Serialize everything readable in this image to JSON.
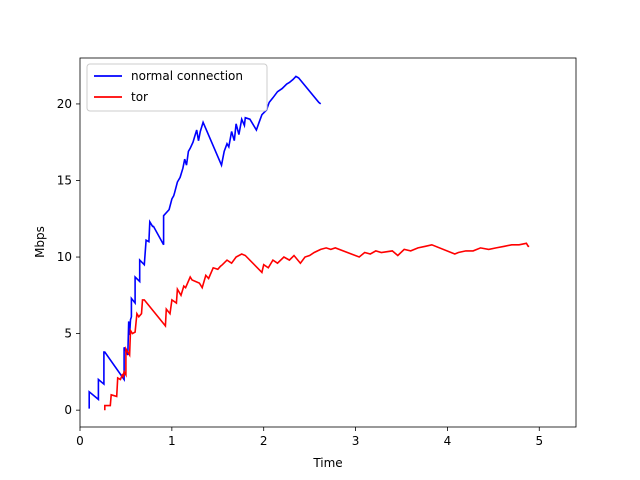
{
  "chart_data": {
    "type": "line",
    "title": "",
    "xlabel": "Time",
    "ylabel": "Mbps",
    "xlim": [
      0,
      5.4
    ],
    "ylim": [
      -1.1,
      23.0
    ],
    "xticks": [
      0,
      1,
      2,
      3,
      4,
      5
    ],
    "yticks": [
      0,
      5,
      10,
      15,
      20
    ],
    "grid": false,
    "legend_position": "top-left",
    "series": [
      {
        "name": "normal connection",
        "color": "#0000ff",
        "x": [
          0.1,
          0.1,
          0.2,
          0.2,
          0.26,
          0.26,
          0.27,
          0.48,
          0.48,
          0.52,
          0.53,
          0.54,
          0.55,
          0.56,
          0.56,
          0.6,
          0.6,
          0.65,
          0.65,
          0.7,
          0.72,
          0.75,
          0.76,
          0.79,
          0.8,
          0.91,
          0.91,
          0.97,
          1.0,
          1.02,
          1.03,
          1.06,
          1.09,
          1.12,
          1.14,
          1.16,
          1.18,
          1.2,
          1.23,
          1.25,
          1.27,
          1.29,
          1.31,
          1.34,
          1.54,
          1.57,
          1.6,
          1.62,
          1.65,
          1.68,
          1.7,
          1.73,
          1.76,
          1.79,
          1.8,
          1.85,
          1.92,
          1.95,
          1.98,
          2.03,
          2.06,
          2.1,
          2.15,
          2.2,
          2.25,
          2.28,
          2.32,
          2.35,
          2.38,
          2.6,
          2.62
        ],
        "y": [
          0.1,
          1.2,
          0.7,
          2.0,
          1.7,
          3.8,
          3.8,
          2.0,
          4.1,
          3.6,
          5.8,
          4.9,
          5.9,
          6.1,
          7.3,
          7.0,
          8.7,
          8.4,
          9.8,
          9.5,
          11.1,
          11.0,
          12.3,
          12.0,
          12.0,
          10.8,
          12.7,
          13.1,
          13.8,
          14.0,
          14.2,
          14.9,
          15.2,
          15.8,
          16.4,
          16.0,
          16.9,
          17.1,
          17.5,
          17.9,
          18.3,
          17.6,
          18.2,
          18.8,
          16.0,
          16.9,
          17.4,
          17.2,
          18.2,
          17.6,
          18.7,
          18.0,
          19.0,
          18.6,
          19.1,
          19.0,
          18.3,
          18.8,
          19.3,
          19.6,
          20.1,
          20.4,
          20.8,
          21.0,
          21.3,
          21.4,
          21.6,
          21.8,
          21.7,
          20.1,
          20.0
        ]
      },
      {
        "name": "tor",
        "color": "#ff0000",
        "x": [
          0.27,
          0.27,
          0.32,
          0.33,
          0.34,
          0.4,
          0.41,
          0.44,
          0.46,
          0.47,
          0.48,
          0.5,
          0.5,
          0.54,
          0.55,
          0.57,
          0.6,
          0.62,
          0.64,
          0.67,
          0.68,
          0.7,
          0.93,
          0.94,
          0.98,
          1.0,
          1.05,
          1.06,
          1.1,
          1.13,
          1.15,
          1.2,
          1.22,
          1.3,
          1.33,
          1.37,
          1.4,
          1.45,
          1.5,
          1.53,
          1.55,
          1.6,
          1.65,
          1.7,
          1.76,
          1.8,
          1.98,
          2.0,
          2.05,
          2.1,
          2.15,
          2.22,
          2.28,
          2.33,
          2.4,
          2.45,
          2.5,
          2.55,
          2.62,
          2.68,
          2.73,
          2.78,
          3.04,
          3.1,
          3.16,
          3.22,
          3.28,
          3.4,
          3.46,
          3.53,
          3.6,
          3.68,
          3.76,
          3.83,
          4.08,
          4.12,
          4.2,
          4.28,
          4.36,
          4.45,
          4.53,
          4.62,
          4.7,
          4.78,
          4.86,
          4.88,
          4.89
        ],
        "y": [
          0.0,
          0.3,
          0.3,
          0.3,
          1.0,
          0.9,
          2.1,
          2.0,
          2.3,
          2.2,
          2.5,
          2.3,
          4.0,
          3.6,
          5.2,
          5.0,
          5.1,
          6.3,
          6.1,
          6.3,
          7.2,
          7.2,
          5.5,
          6.6,
          6.3,
          7.2,
          7.0,
          7.9,
          7.5,
          8.1,
          8.0,
          8.7,
          8.5,
          8.3,
          8.0,
          8.8,
          8.6,
          9.3,
          9.2,
          9.4,
          9.5,
          9.8,
          9.6,
          10.0,
          10.2,
          10.1,
          9.0,
          9.5,
          9.3,
          9.8,
          9.6,
          10.0,
          9.8,
          10.1,
          9.6,
          10.0,
          10.1,
          10.3,
          10.5,
          10.6,
          10.5,
          10.6,
          10.0,
          10.3,
          10.2,
          10.4,
          10.3,
          10.4,
          10.1,
          10.5,
          10.4,
          10.6,
          10.7,
          10.8,
          10.2,
          10.3,
          10.4,
          10.4,
          10.6,
          10.5,
          10.6,
          10.7,
          10.8,
          10.8,
          10.9,
          10.7,
          10.7
        ]
      }
    ]
  }
}
